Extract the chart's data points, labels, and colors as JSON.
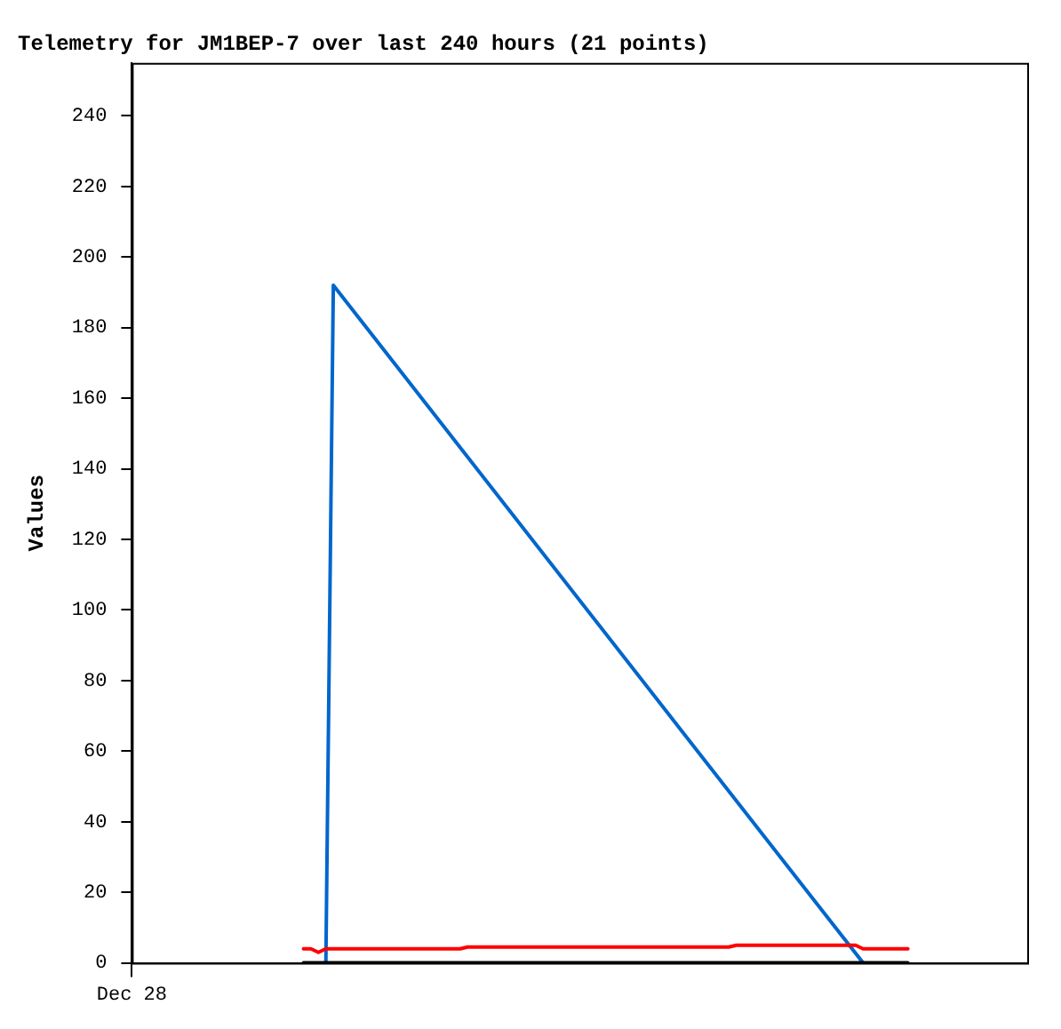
{
  "chart_data": {
    "type": "line",
    "title": "Telemetry for JM1BEP-7 over last 240 hours (21 points)",
    "ylabel": "Values",
    "categories": [
      "Dec 28",
      null,
      null,
      null,
      null,
      null,
      null,
      null,
      null,
      null,
      null,
      null,
      null,
      null,
      null,
      null,
      null,
      null,
      null,
      null,
      null,
      null,
      null,
      null,
      null,
      null,
      null,
      null,
      null,
      null,
      null,
      null,
      null,
      null,
      null,
      null,
      null,
      null,
      null,
      null,
      null,
      null,
      null,
      null,
      null,
      null,
      null,
      null,
      null,
      null,
      null,
      null,
      null,
      null,
      null,
      null,
      null,
      null,
      null,
      null,
      null,
      null,
      null,
      null,
      null,
      null,
      null,
      null,
      null,
      null,
      null,
      null,
      null,
      null,
      null,
      null,
      null,
      null,
      null,
      null,
      null,
      null,
      null,
      null,
      null,
      null,
      null,
      null,
      null,
      null,
      null,
      null,
      null,
      null,
      null,
      null,
      null,
      null,
      null,
      null,
      null,
      null,
      null,
      null,
      null,
      null,
      null,
      null,
      null,
      null,
      null,
      null,
      null,
      null,
      null,
      null,
      null,
      null,
      null,
      null,
      null
    ],
    "ylim": [
      0,
      255
    ],
    "yticks": [
      0,
      20,
      40,
      60,
      80,
      100,
      120,
      140,
      160,
      180,
      200,
      220,
      240
    ],
    "grid": false,
    "legend": false,
    "marker": "none",
    "line_style": "solid",
    "series": [
      {
        "color": "#ff0000",
        "values": [
          null,
          null,
          null,
          null,
          null,
          null,
          null,
          null,
          null,
          null,
          null,
          null,
          null,
          null,
          null,
          null,
          null,
          null,
          null,
          null,
          null,
          null,
          null,
          4,
          4,
          3,
          4,
          null,
          null,
          null,
          null,
          null,
          null,
          null,
          null,
          null,
          null,
          null,
          null,
          null,
          null,
          null,
          null,
          null,
          4,
          4.5,
          null,
          null,
          null,
          null,
          null,
          null,
          null,
          null,
          null,
          null,
          null,
          null,
          null,
          null,
          null,
          null,
          null,
          null,
          null,
          null,
          null,
          null,
          null,
          null,
          null,
          null,
          null,
          null,
          null,
          null,
          null,
          null,
          null,
          null,
          4.5,
          5,
          null,
          null,
          null,
          null,
          null,
          null,
          null,
          null,
          null,
          null,
          null,
          null,
          null,
          null,
          null,
          5,
          4,
          null,
          null,
          null,
          null,
          null,
          4,
          null,
          null,
          null,
          null,
          null,
          null,
          null,
          null,
          null,
          null,
          null,
          null,
          null,
          null,
          null,
          null
        ]
      },
      {
        "color": "#000000",
        "values": [
          null,
          null,
          null,
          null,
          null,
          null,
          null,
          null,
          null,
          null,
          null,
          null,
          null,
          null,
          null,
          null,
          null,
          null,
          null,
          null,
          null,
          null,
          null,
          0,
          null,
          null,
          null,
          null,
          null,
          null,
          null,
          null,
          null,
          null,
          null,
          null,
          null,
          null,
          null,
          null,
          null,
          null,
          null,
          null,
          null,
          null,
          null,
          null,
          null,
          null,
          null,
          null,
          null,
          null,
          null,
          null,
          null,
          null,
          null,
          null,
          null,
          null,
          null,
          null,
          null,
          null,
          null,
          null,
          null,
          null,
          null,
          null,
          null,
          null,
          null,
          null,
          null,
          null,
          null,
          null,
          null,
          null,
          null,
          null,
          null,
          null,
          null,
          null,
          null,
          null,
          null,
          null,
          null,
          null,
          null,
          null,
          null,
          null,
          null,
          null,
          null,
          null,
          null,
          null,
          0,
          null,
          null,
          null,
          null,
          null,
          null,
          null,
          null,
          null,
          null,
          null,
          null,
          null,
          null,
          null,
          null
        ]
      },
      {
        "color": "#0066cc",
        "values": [
          null,
          null,
          null,
          null,
          null,
          null,
          null,
          null,
          null,
          null,
          null,
          null,
          null,
          null,
          null,
          null,
          null,
          null,
          null,
          null,
          null,
          null,
          null,
          null,
          null,
          null,
          0,
          192,
          null,
          null,
          null,
          null,
          null,
          null,
          null,
          null,
          null,
          null,
          null,
          null,
          null,
          null,
          null,
          null,
          null,
          null,
          null,
          null,
          null,
          null,
          null,
          null,
          null,
          null,
          null,
          null,
          null,
          null,
          null,
          null,
          null,
          null,
          null,
          null,
          null,
          null,
          null,
          null,
          null,
          null,
          null,
          null,
          null,
          null,
          null,
          null,
          null,
          null,
          null,
          null,
          null,
          null,
          null,
          null,
          null,
          null,
          null,
          null,
          null,
          null,
          null,
          null,
          null,
          null,
          null,
          null,
          null,
          null,
          0,
          null,
          null,
          null,
          null,
          null,
          null,
          null,
          null,
          null,
          null,
          null,
          null,
          null,
          null,
          null,
          null,
          null,
          null,
          null,
          null,
          null,
          null
        ]
      }
    ]
  }
}
